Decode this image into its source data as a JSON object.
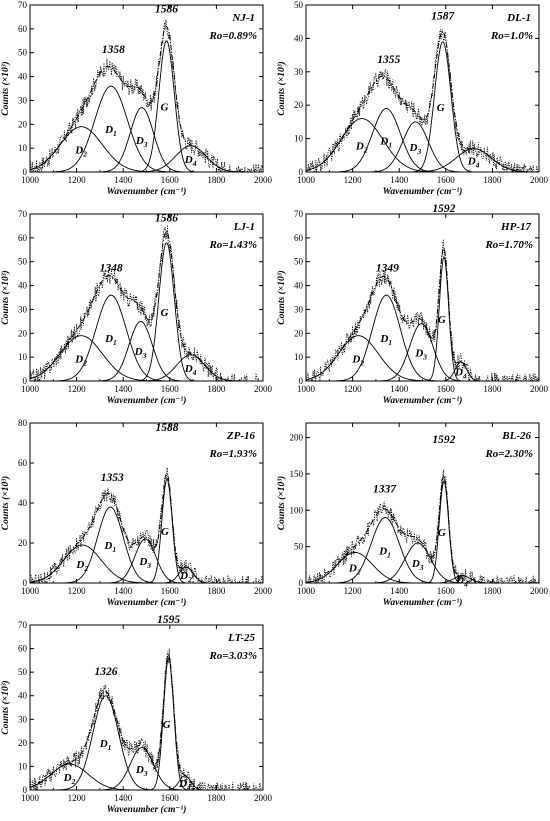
{
  "chart_data": [
    {
      "type": "line",
      "sample": "NJ-1",
      "ro": "Ro=0.89%",
      "xlabel": "Wavenumber (cm⁻¹)",
      "ylabel": "Counts (×10³)",
      "xlim": [
        1000,
        2000
      ],
      "ylim": [
        0,
        70
      ],
      "xticks": [
        1000,
        1200,
        1400,
        1600,
        1800,
        2000
      ],
      "yticks": [
        0,
        10,
        20,
        30,
        40,
        50,
        60,
        70
      ],
      "peak_labels": [
        {
          "text": "1358",
          "x": 1358,
          "y": 49
        },
        {
          "text": "1586",
          "x": 1586,
          "y": 66
        }
      ],
      "bands": [
        {
          "name": "D",
          "sub": "2",
          "center": 1220,
          "height": 19,
          "width": 90
        },
        {
          "name": "D",
          "sub": "1",
          "center": 1348,
          "height": 36,
          "width": 70
        },
        {
          "name": "D",
          "sub": "3",
          "center": 1480,
          "height": 27,
          "width": 50
        },
        {
          "name": "G",
          "sub": "",
          "center": 1586,
          "height": 55,
          "width": 33
        },
        {
          "name": "D",
          "sub": "4",
          "center": 1690,
          "height": 11,
          "width": 65
        }
      ]
    },
    {
      "type": "line",
      "sample": "DL-1",
      "ro": "Ro=1.0%",
      "xlabel": "Wavenumber (cm⁻¹)",
      "ylabel": "Counts (×10³)",
      "xlim": [
        1000,
        2000
      ],
      "ylim": [
        0,
        50
      ],
      "xticks": [
        1000,
        1200,
        1400,
        1600,
        1800,
        2000
      ],
      "yticks": [
        0,
        10,
        20,
        30,
        40,
        50
      ],
      "peak_labels": [
        {
          "text": "1355",
          "x": 1355,
          "y": 32
        },
        {
          "text": "1587",
          "x": 1587,
          "y": 45
        }
      ],
      "bands": [
        {
          "name": "D",
          "sub": "2",
          "center": 1240,
          "height": 16,
          "width": 90
        },
        {
          "name": "D",
          "sub": "1",
          "center": 1345,
          "height": 19,
          "width": 60
        },
        {
          "name": "D",
          "sub": "3",
          "center": 1470,
          "height": 15,
          "width": 55
        },
        {
          "name": "G",
          "sub": "",
          "center": 1587,
          "height": 39,
          "width": 35
        },
        {
          "name": "D",
          "sub": "4",
          "center": 1720,
          "height": 7,
          "width": 75
        }
      ]
    },
    {
      "type": "line",
      "sample": "LJ-1",
      "ro": "Ro=1.43%",
      "xlabel": "Wavenumber (cm⁻¹)",
      "ylabel": "Counts (×10³)",
      "xlim": [
        1000,
        2000
      ],
      "ylim": [
        0,
        70
      ],
      "xticks": [
        1000,
        1200,
        1400,
        1600,
        1800,
        2000
      ],
      "yticks": [
        0,
        10,
        20,
        30,
        40,
        50,
        60,
        70
      ],
      "peak_labels": [
        {
          "text": "1348",
          "x": 1348,
          "y": 45
        },
        {
          "text": "1586",
          "x": 1586,
          "y": 66
        }
      ],
      "bands": [
        {
          "name": "D",
          "sub": "2",
          "center": 1220,
          "height": 19,
          "width": 90
        },
        {
          "name": "D",
          "sub": "1",
          "center": 1348,
          "height": 36,
          "width": 65
        },
        {
          "name": "D",
          "sub": "3",
          "center": 1475,
          "height": 25,
          "width": 50
        },
        {
          "name": "G",
          "sub": "",
          "center": 1586,
          "height": 58,
          "width": 33
        },
        {
          "name": "D",
          "sub": "4",
          "center": 1690,
          "height": 11,
          "width": 60
        }
      ]
    },
    {
      "type": "line",
      "sample": "HP-17",
      "ro": "Ro=1.70%",
      "xlabel": "Wavenumber (cm⁻¹)",
      "ylabel": "Counts (×10³)",
      "xlim": [
        1000,
        2000
      ],
      "ylim": [
        0,
        70
      ],
      "xticks": [
        1000,
        1200,
        1400,
        1600,
        1800,
        2000
      ],
      "yticks": [
        0,
        10,
        20,
        30,
        40,
        50,
        60,
        70
      ],
      "peak_labels": [
        {
          "text": "1349",
          "x": 1349,
          "y": 45
        },
        {
          "text": "1592",
          "x": 1592,
          "y": 70
        }
      ],
      "bands": [
        {
          "name": "D",
          "sub": "2",
          "center": 1225,
          "height": 19,
          "width": 85
        },
        {
          "name": "D",
          "sub": "1",
          "center": 1345,
          "height": 36,
          "width": 60
        },
        {
          "name": "D",
          "sub": "3",
          "center": 1495,
          "height": 24,
          "width": 50
        },
        {
          "name": "G",
          "sub": "",
          "center": 1592,
          "height": 52,
          "width": 20
        },
        {
          "name": "D",
          "sub": "4",
          "center": 1665,
          "height": 8,
          "width": 25
        }
      ]
    },
    {
      "type": "line",
      "sample": "ZP-16",
      "ro": "Ro=1.93%",
      "xlabel": "Wavenumber (cm⁻¹)",
      "ylabel": "Counts (×10³)",
      "xlim": [
        1000,
        2000
      ],
      "ylim": [
        0,
        80
      ],
      "xticks": [
        1000,
        1200,
        1400,
        1600,
        1800,
        2000
      ],
      "yticks": [
        0,
        20,
        40,
        60,
        80
      ],
      "peak_labels": [
        {
          "text": "1353",
          "x": 1353,
          "y": 50
        },
        {
          "text": "1588",
          "x": 1588,
          "y": 75
        }
      ],
      "bands": [
        {
          "name": "D",
          "sub": "2",
          "center": 1225,
          "height": 19,
          "width": 80
        },
        {
          "name": "D",
          "sub": "1",
          "center": 1345,
          "height": 38,
          "width": 55
        },
        {
          "name": "D",
          "sub": "3",
          "center": 1495,
          "height": 22,
          "width": 45
        },
        {
          "name": "G",
          "sub": "",
          "center": 1588,
          "height": 52,
          "width": 22
        },
        {
          "name": "D",
          "sub": "2",
          "center": 1670,
          "height": 8,
          "width": 30
        }
      ]
    },
    {
      "type": "line",
      "sample": "BL-26",
      "ro": "Ro=2.30%",
      "xlabel": "Wavenumber (cm⁻¹)",
      "ylabel": "Counts (×10³)",
      "xlim": [
        1000,
        2000
      ],
      "ylim": [
        0,
        220
      ],
      "xticks": [
        1000,
        1200,
        1400,
        1600,
        1800,
        2000
      ],
      "yticks": [
        0,
        50,
        100,
        150,
        200
      ],
      "peak_labels": [
        {
          "text": "1337",
          "x": 1337,
          "y": 122
        },
        {
          "text": "1592",
          "x": 1592,
          "y": 190
        }
      ],
      "bands": [
        {
          "name": "D",
          "sub": "2",
          "center": 1210,
          "height": 42,
          "width": 75
        },
        {
          "name": "D",
          "sub": "1",
          "center": 1340,
          "height": 90,
          "width": 60
        },
        {
          "name": "D",
          "sub": "3",
          "center": 1480,
          "height": 55,
          "width": 55
        },
        {
          "name": "G",
          "sub": "",
          "center": 1592,
          "height": 140,
          "width": 20
        },
        {
          "name": "D",
          "sub": "4",
          "center": 1670,
          "height": 10,
          "width": 35
        }
      ]
    },
    {
      "type": "line",
      "sample": "LT-25",
      "ro": "Ro=3.03%",
      "xlabel": "Wavenumber (cm⁻¹)",
      "ylabel": "Counts (×10³)",
      "xlim": [
        1000,
        2000
      ],
      "ylim": [
        0,
        70
      ],
      "xticks": [
        1000,
        1200,
        1400,
        1600,
        1800,
        2000
      ],
      "yticks": [
        0,
        10,
        20,
        30,
        40,
        50,
        60,
        70
      ],
      "peak_labels": [
        {
          "text": "1326",
          "x": 1326,
          "y": 48
        },
        {
          "text": "1595",
          "x": 1595,
          "y": 70
        }
      ],
      "bands": [
        {
          "name": "D",
          "sub": "2",
          "center": 1170,
          "height": 11,
          "width": 80
        },
        {
          "name": "D",
          "sub": "1",
          "center": 1325,
          "height": 40,
          "width": 55
        },
        {
          "name": "D",
          "sub": "3",
          "center": 1480,
          "height": 18,
          "width": 50
        },
        {
          "name": "G",
          "sub": "",
          "center": 1595,
          "height": 56,
          "width": 22
        },
        {
          "name": "D",
          "sub": "4",
          "center": 1665,
          "height": 6,
          "width": 25
        }
      ]
    }
  ]
}
